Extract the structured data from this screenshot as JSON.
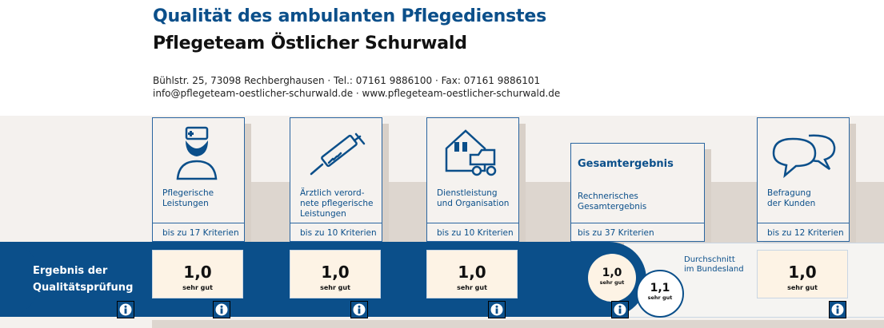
{
  "header": {
    "title_line1": "Qualität des ambulanten Pflegedienstes",
    "title_line2": "Pflegeteam Östlicher Schurwald",
    "address_line1": "Bühlstr. 25, 73098 Rechberghausen · Tel.: 07161 9886100 · Fax: 07161 9886101",
    "address_line2": "info@pflegeteam-oestlicher-schurwald.de · www.pflegeteam-oestlicher-schurwald.de"
  },
  "categories": [
    {
      "label_lines": [
        "Pflegerische",
        "Leistungen"
      ],
      "criteria": "bis zu 17 Kriterien",
      "icon": "nurse-icon",
      "score": "1,0",
      "rating": "sehr gut"
    },
    {
      "label_lines": [
        "Ärztlich verord-",
        "nete pflegerische",
        "Leistungen"
      ],
      "criteria": "bis zu 10 Kriterien",
      "icon": "syringe-icon",
      "score": "1,0",
      "rating": "sehr gut"
    },
    {
      "label_lines": [
        "Dienstleistung",
        "und Organisation"
      ],
      "criteria": "bis zu 10 Kriterien",
      "icon": "house-car-icon",
      "score": "1,0",
      "rating": "sehr gut"
    },
    {
      "title": "Gesamtergebnis",
      "label_lines": [
        "Rechnerisches",
        "Gesamtergebnis"
      ],
      "criteria": "bis zu 37 Kriterien",
      "score": "1,0",
      "rating": "sehr gut"
    },
    {
      "label_lines": [
        "Befragung",
        "der Kunden"
      ],
      "criteria": "bis zu 12 Kriterien",
      "icon": "speech-bubbles-icon",
      "score": "1,0",
      "rating": "sehr gut"
    }
  ],
  "result_bar": {
    "label_line1": "Ergebnis der",
    "label_line2": "Qualitätsprüfung"
  },
  "average": {
    "label_line1": "Durchschnitt",
    "label_line2": "im Bundesland",
    "score": "1,1",
    "rating": "sehr gut"
  },
  "colors": {
    "brand_blue": "#0b4f8a",
    "score_bg": "#fdf3e5",
    "card_bg": "#f5f2ef",
    "shadow": "#d8d0c8"
  }
}
